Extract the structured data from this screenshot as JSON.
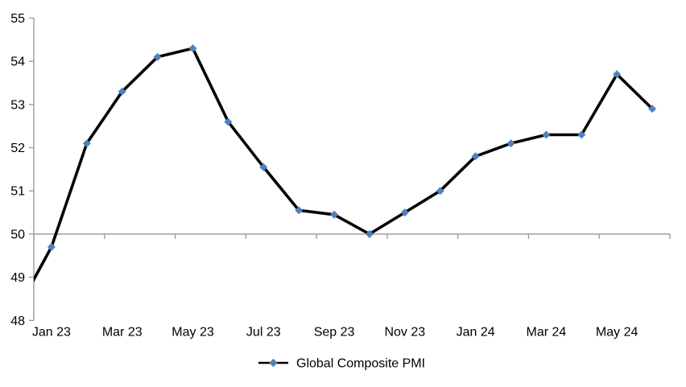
{
  "chart_data": {
    "type": "line",
    "title": "",
    "legend": {
      "label": "Global Composite PMI",
      "position": "bottom-center"
    },
    "categories": [
      "Jan 23",
      "Feb 23",
      "Mar 23",
      "Apr 23",
      "May 23",
      "Jun 23",
      "Jul 23",
      "Aug 23",
      "Sep 23",
      "Oct 23",
      "Nov 23",
      "Dec 23",
      "Jan 24",
      "Feb 24",
      "Mar 24",
      "Apr 24",
      "May 24",
      "Jun 24"
    ],
    "series": [
      {
        "name": "Global Composite PMI",
        "values": [
          49.7,
          52.1,
          53.3,
          54.1,
          54.3,
          52.6,
          51.55,
          50.55,
          50.45,
          50.0,
          50.5,
          51.0,
          51.8,
          52.1,
          52.3,
          52.3,
          53.7,
          52.9
        ]
      }
    ],
    "clipped_leading_point": {
      "category": "Dec 22",
      "value": 48.2
    },
    "x_axis": {
      "tick_labels": [
        "Jan 23",
        "Mar 23",
        "May 23",
        "Jul 23",
        "Sep 23",
        "Nov 23",
        "Jan 24",
        "Mar 24",
        "May 24"
      ],
      "label_interval": 2
    },
    "y_axis": {
      "ticks": [
        55,
        54,
        53,
        52,
        51,
        50,
        49,
        48
      ],
      "min": 48,
      "max": 55
    },
    "axis_crosses_at": 50,
    "grid": false,
    "layout_hints": {
      "marker_shape": "diamond",
      "legend_position": "bottom"
    },
    "colors": {
      "line": "#000000",
      "marker": "#4F81BD",
      "axis": "#969696",
      "text": "#000000",
      "background": "#FFFFFF"
    }
  }
}
